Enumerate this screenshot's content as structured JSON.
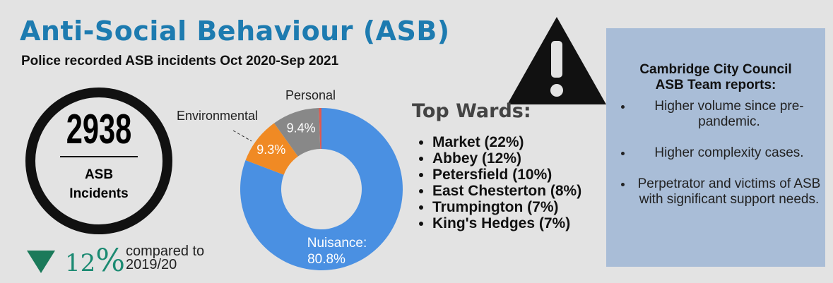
{
  "header": {
    "title": "Anti-Social Behaviour (ASB)",
    "subtitle": "Police recorded ASB incidents Oct 2020-Sep 2021"
  },
  "stat": {
    "count": "2938",
    "label_line1": "ASB",
    "label_line2": "Incidents",
    "change_value": "12",
    "change_unit": "%",
    "compared_line1": "compared to",
    "compared_line2": "2019/20"
  },
  "chart_data": {
    "type": "pie",
    "donut": true,
    "categories": [
      "Nuisance:",
      "Environmental",
      "Personal",
      null
    ],
    "values": [
      80.8,
      9.3,
      9.4,
      0.5
    ],
    "value_labels": [
      "80.8%",
      "9.3%",
      "9.4%",
      null
    ],
    "colors": [
      "#4a90e2",
      "#f08a24",
      "#888888",
      "#e05a50"
    ]
  },
  "top_wards": {
    "title": "Top Wards:",
    "items": [
      "Market (22%)",
      "Abbey (12%)",
      "Petersfield (10%)",
      "East Chesterton (8%)",
      "Trumpington (7%)",
      "King's Hedges (7%)"
    ]
  },
  "council": {
    "title_line1": "Cambridge City Council",
    "title_line2": "ASB Team reports:",
    "items": [
      "Higher volume since pre- pandemic.",
      "Higher complexity cases.",
      "Perpetrator and victims of ASB with significant support needs."
    ]
  }
}
